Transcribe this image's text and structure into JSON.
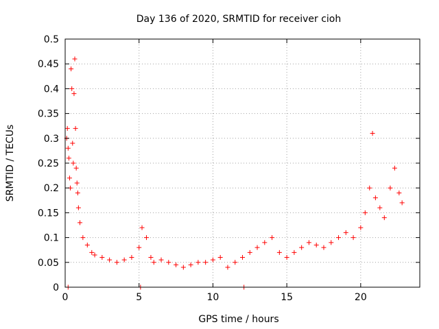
{
  "chart_data": {
    "type": "scatter",
    "title": "Day 136 of 2020, SRMTID for receiver cioh",
    "xlabel": "GPS time / hours",
    "ylabel": "SRMTID / TECUs",
    "xlim": [
      0,
      24
    ],
    "ylim": [
      0,
      0.5
    ],
    "grid": true,
    "marker": "+",
    "color": "#ff0000",
    "x_ticks": [
      0,
      5,
      10,
      15,
      20
    ],
    "x_tick_labels": [
      "0",
      "5",
      "10",
      "15",
      "20"
    ],
    "y_ticks": [
      0,
      0.05,
      0.1,
      0.15,
      0.2,
      0.25,
      0.3,
      0.35,
      0.4,
      0.45,
      0.5
    ],
    "y_tick_labels": [
      "0",
      "0.05",
      "0.1",
      "0.15",
      "0.2",
      "0.25",
      "0.3",
      "0.35",
      "0.4",
      "0.45",
      "0.5"
    ],
    "series": [
      {
        "name": "SRMTID",
        "x": [
          0.1,
          0.15,
          0.2,
          0.25,
          0.3,
          0.35,
          0.4,
          0.45,
          0.5,
          0.55,
          0.6,
          0.65,
          0.7,
          0.75,
          0.8,
          0.85,
          0.9,
          1.0,
          1.2,
          1.5,
          1.8,
          2.0,
          2.5,
          3.0,
          3.5,
          4.0,
          4.5,
          5.0,
          5.2,
          5.5,
          5.8,
          6.0,
          6.5,
          7.0,
          7.5,
          8.0,
          8.5,
          9.0,
          9.5,
          10.0,
          10.5,
          11.0,
          11.5,
          12.0,
          12.5,
          13.0,
          13.5,
          14.0,
          14.5,
          15.0,
          15.5,
          16.0,
          16.5,
          17.0,
          17.5,
          18.0,
          18.5,
          19.0,
          19.5,
          20.0,
          20.3,
          20.6,
          20.8,
          21.0,
          21.3,
          21.6,
          22.0,
          22.3,
          22.6,
          22.8,
          0.2,
          5.1,
          12.1
        ],
        "y": [
          0.3,
          0.32,
          0.28,
          0.26,
          0.22,
          0.2,
          0.44,
          0.4,
          0.29,
          0.25,
          0.39,
          0.46,
          0.32,
          0.24,
          0.21,
          0.19,
          0.16,
          0.13,
          0.1,
          0.085,
          0.07,
          0.065,
          0.06,
          0.055,
          0.05,
          0.055,
          0.06,
          0.08,
          0.12,
          0.1,
          0.06,
          0.05,
          0.055,
          0.05,
          0.045,
          0.04,
          0.045,
          0.05,
          0.05,
          0.055,
          0.06,
          0.04,
          0.05,
          0.06,
          0.07,
          0.08,
          0.09,
          0.1,
          0.07,
          0.06,
          0.07,
          0.08,
          0.09,
          0.085,
          0.08,
          0.09,
          0.1,
          0.11,
          0.1,
          0.12,
          0.15,
          0.2,
          0.31,
          0.18,
          0.16,
          0.14,
          0.2,
          0.24,
          0.19,
          0.17,
          0.0,
          0.0,
          0.0
        ]
      }
    ]
  }
}
